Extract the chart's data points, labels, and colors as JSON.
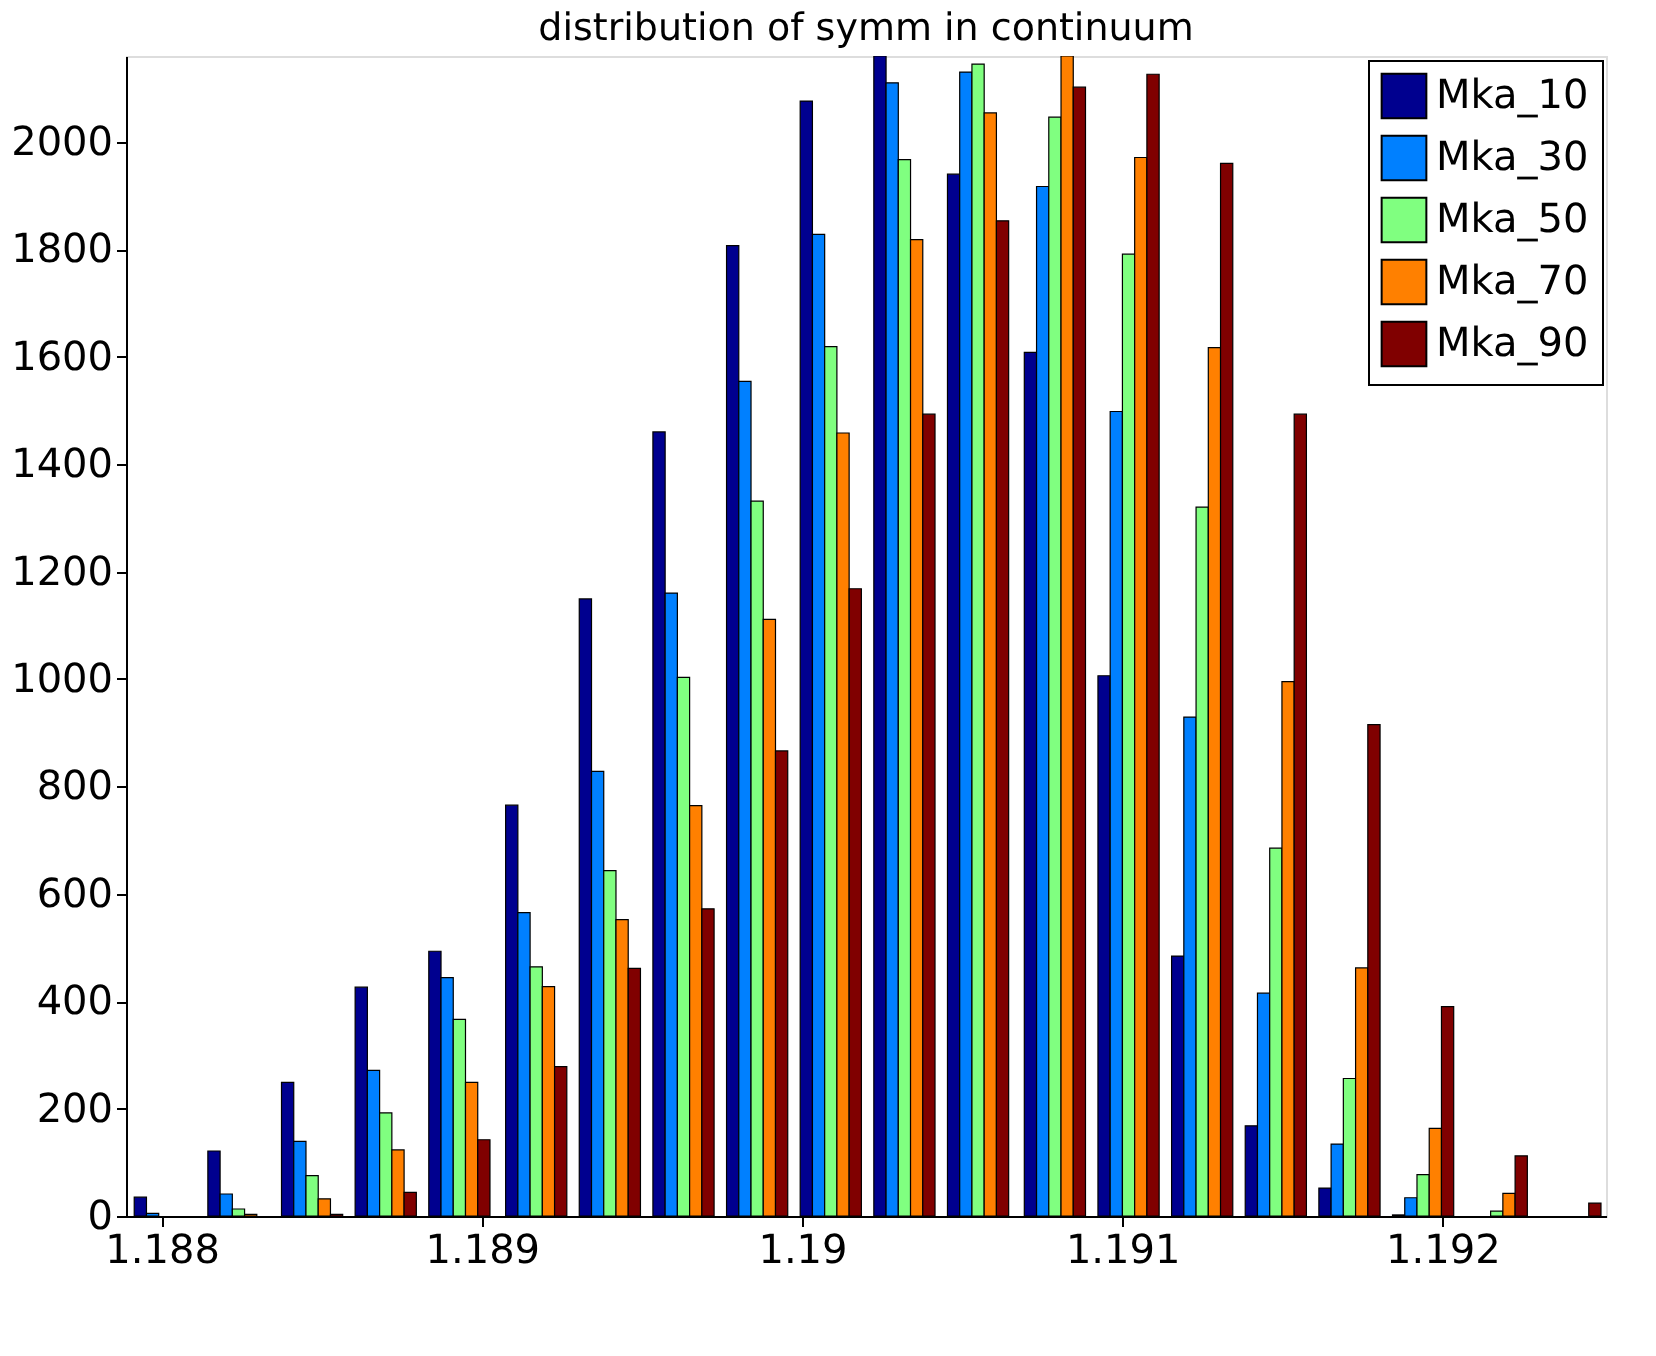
{
  "chart_data": {
    "type": "bar",
    "title": "distribution of symm in continuum",
    "x": [
      1.18801,
      1.18824,
      1.18847,
      1.1887,
      1.18893,
      1.18917,
      1.1894,
      1.18963,
      1.18986,
      1.19009,
      1.19032,
      1.19055,
      1.19079,
      1.19102,
      1.19125,
      1.19148,
      1.19171,
      1.19194,
      1.19217,
      1.1924
    ],
    "series": [
      {
        "name": "Mka_10",
        "color": "#00008f",
        "values": [
          35,
          121,
          249,
          426,
          493,
          765,
          1149,
          1460,
          1807,
          2076,
          2160,
          1940,
          1608,
          1006,
          484,
          168,
          52,
          2,
          0,
          0
        ]
      },
      {
        "name": "Mka_30",
        "color": "#0080ff",
        "values": [
          5,
          41,
          139,
          271,
          444,
          565,
          828,
          1160,
          1554,
          1828,
          2110,
          2130,
          1917,
          1498,
          929,
          415,
          134,
          34,
          0,
          0
        ]
      },
      {
        "name": "Mka_50",
        "color": "#80ff80",
        "values": [
          0,
          13,
          75,
          192,
          366,
          464,
          643,
          1003,
          1331,
          1619,
          1967,
          2145,
          2046,
          1791,
          1320,
          685,
          256,
          77,
          9,
          0
        ]
      },
      {
        "name": "Mka_70",
        "color": "#ff8000",
        "values": [
          0,
          3,
          32,
          123,
          249,
          427,
          552,
          764,
          1111,
          1458,
          1818,
          2054,
          2160,
          1971,
          1617,
          995,
          462,
          163,
          42,
          0
        ]
      },
      {
        "name": "Mka_90",
        "color": "#800000",
        "values": [
          0,
          0,
          3,
          44,
          142,
          278,
          461,
          572,
          866,
          1168,
          1493,
          1853,
          2102,
          2126,
          1960,
          1493,
          915,
          390,
          112,
          24
        ]
      }
    ],
    "xlim": [
      1.18792,
      1.19248
    ],
    "xticks": [
      1.188,
      1.189,
      1.19,
      1.191,
      1.192
    ],
    "ylim": [
      0,
      2160
    ],
    "yticks": [
      0,
      200,
      400,
      600,
      800,
      1000,
      1200,
      1400,
      1600,
      1800,
      2000
    ],
    "grid": false,
    "legend": "top right"
  }
}
